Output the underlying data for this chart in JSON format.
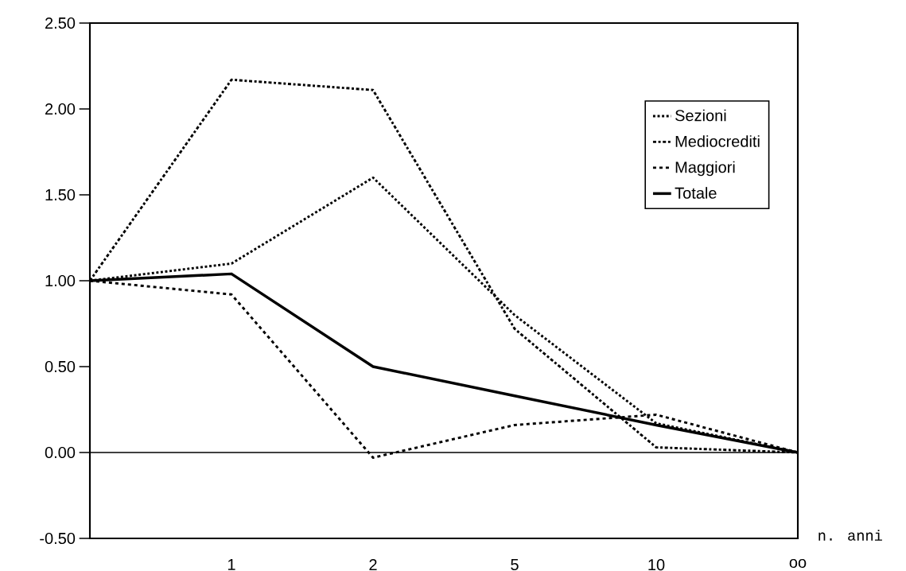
{
  "chart_data": {
    "type": "line",
    "xlabel": "n. anni",
    "categories": [
      null,
      "1",
      "2",
      "5",
      "10",
      "oo"
    ],
    "series": [
      {
        "name": "Sezioni",
        "color": "#000000",
        "line_style": "dotted",
        "values": [
          1.0,
          1.1,
          1.6,
          0.8,
          0.17,
          0.0
        ]
      },
      {
        "name": "Mediocrediti",
        "color": "#000000",
        "line_style": "dashdot",
        "values": [
          1.0,
          2.17,
          2.11,
          0.72,
          0.03,
          0.0
        ]
      },
      {
        "name": "Maggiori",
        "color": "#000000",
        "line_style": "dashed",
        "values": [
          1.0,
          0.92,
          -0.03,
          0.16,
          0.22,
          0.0
        ]
      },
      {
        "name": "Totale",
        "color": "#000000",
        "line_style": "solid",
        "values": [
          1.0,
          1.04,
          0.5,
          0.33,
          0.16,
          0.0
        ]
      }
    ],
    "ylim": [
      -0.5,
      2.5
    ],
    "yticks": [
      {
        "value": -0.5,
        "label": "-0.50"
      },
      {
        "value": 0,
        "label": "0.00"
      },
      {
        "value": 0.5,
        "label": "0.50"
      },
      {
        "value": 1,
        "label": "1.00"
      },
      {
        "value": 1.5,
        "label": "1.50"
      },
      {
        "value": 2,
        "label": "2.00"
      },
      {
        "value": 2.5,
        "label": "2.50"
      }
    ],
    "ref_lines": [
      {
        "axis": "y",
        "value": 0,
        "color": "#000000"
      }
    ],
    "legend": "top right",
    "grid": false,
    "marker": "none"
  }
}
